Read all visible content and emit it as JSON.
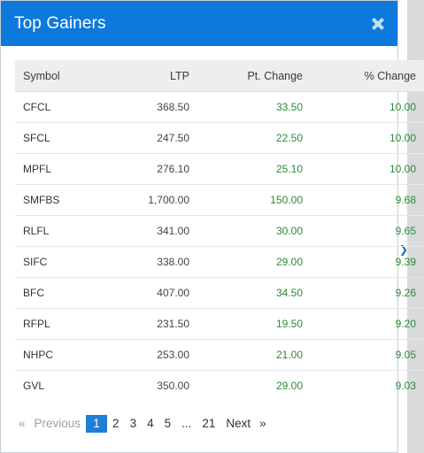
{
  "modal": {
    "title": "Top Gainers",
    "close_icon": "close-icon"
  },
  "table": {
    "headers": {
      "symbol": "Symbol",
      "ltp": "LTP",
      "pt_change": "Pt. Change",
      "pct_change": "% Change"
    },
    "rows": [
      {
        "symbol": "CFCL",
        "ltp": "368.50",
        "pt_change": "33.50",
        "pct_change": "10.00"
      },
      {
        "symbol": "SFCL",
        "ltp": "247.50",
        "pt_change": "22.50",
        "pct_change": "10.00"
      },
      {
        "symbol": "MPFL",
        "ltp": "276.10",
        "pt_change": "25.10",
        "pct_change": "10.00"
      },
      {
        "symbol": "SMFBS",
        "ltp": "1,700.00",
        "pt_change": "150.00",
        "pct_change": "9.68"
      },
      {
        "symbol": "RLFL",
        "ltp": "341.00",
        "pt_change": "30.00",
        "pct_change": "9.65"
      },
      {
        "symbol": "SIFC",
        "ltp": "338.00",
        "pt_change": "29.00",
        "pct_change": "9.39"
      },
      {
        "symbol": "BFC",
        "ltp": "407.00",
        "pt_change": "34.50",
        "pct_change": "9.26"
      },
      {
        "symbol": "RFPL",
        "ltp": "231.50",
        "pt_change": "19.50",
        "pct_change": "9.20"
      },
      {
        "symbol": "NHPC",
        "ltp": "253.00",
        "pt_change": "21.00",
        "pct_change": "9.05"
      },
      {
        "symbol": "GVL",
        "ltp": "350.00",
        "pt_change": "29.00",
        "pct_change": "9.03"
      }
    ]
  },
  "pagination": {
    "prev_arrow": "«",
    "prev_label": "Previous",
    "pages": [
      "1",
      "2",
      "3",
      "4",
      "5",
      "...",
      "21"
    ],
    "active_page": "1",
    "next_label": "Next",
    "next_arrow": "»"
  },
  "colors": {
    "header_bg": "#0d79dc",
    "positive": "#2e8b36",
    "active_page": "#1f7fd8"
  }
}
